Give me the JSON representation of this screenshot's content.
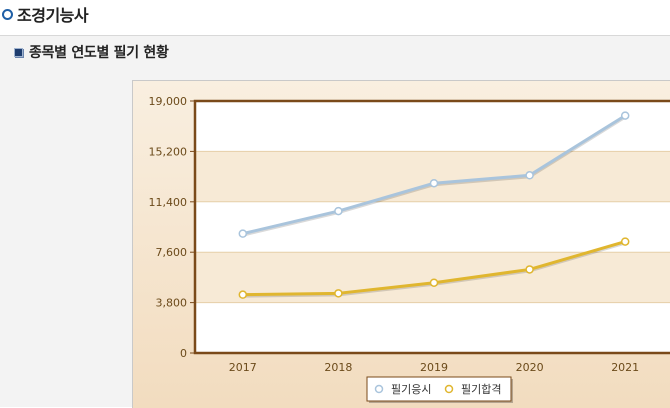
{
  "page": {
    "title": "조경기능사",
    "section_title": "종목별 연도별 필기 현황"
  },
  "chart_data": {
    "type": "line",
    "title": "",
    "xlabel": "",
    "ylabel": "",
    "categories": [
      "2017",
      "2018",
      "2019",
      "2020",
      "2021"
    ],
    "yticks": [
      "0",
      "3,800",
      "7,600",
      "11,400",
      "15,200",
      "19,000"
    ],
    "ylim": [
      0,
      19000
    ],
    "grid": true,
    "legend_position": "bottom",
    "series": [
      {
        "name": "필기응시",
        "values": [
          9000,
          10700,
          12800,
          13400,
          17900
        ],
        "color": "#a9c4dc"
      },
      {
        "name": "필기합격",
        "values": [
          4400,
          4500,
          5300,
          6300,
          8400
        ],
        "color": "#e0b62f"
      }
    ],
    "colors": {
      "frame": "#7a4a1a",
      "axis_text": "#6b4a1a",
      "band": "#f7ead6"
    }
  }
}
